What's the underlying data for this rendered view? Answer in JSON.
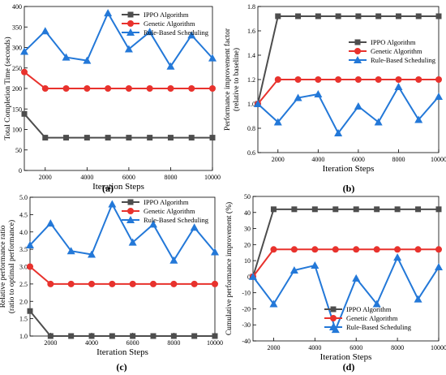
{
  "chart_data": [
    {
      "id": "a",
      "type": "line",
      "panel_label": "(a)",
      "xlabel": "Iteration Steps",
      "ylabel": "Total Completion Time (seconds)",
      "xlim": [
        1000,
        10000
      ],
      "ylim": [
        0,
        400
      ],
      "xticks": [
        2000,
        4000,
        6000,
        8000,
        10000
      ],
      "yticks": [
        0,
        50,
        100,
        150,
        200,
        250,
        300,
        350,
        400
      ],
      "ytick_labels": [
        "0",
        "50",
        "100",
        "150",
        "200",
        "250",
        "300",
        "350",
        "400"
      ],
      "legend_position": "top-right",
      "x": [
        1000,
        2000,
        3000,
        4000,
        5000,
        6000,
        7000,
        8000,
        9000,
        10000
      ],
      "series": [
        {
          "name": "IPPO Algorithm",
          "color": "#4d4d4d",
          "marker": "square",
          "values": [
            138,
            80,
            80,
            80,
            80,
            80,
            80,
            80,
            80,
            80
          ]
        },
        {
          "name": "Genetic Algorithm",
          "color": "#e8322d",
          "marker": "circle",
          "values": [
            240,
            200,
            200,
            200,
            200,
            200,
            200,
            200,
            200,
            200
          ]
        },
        {
          "name": "Rule-Based Scheduling",
          "color": "#2378d8",
          "marker": "triangle",
          "values": [
            290,
            340,
            276,
            268,
            384,
            296,
            338,
            254,
            330,
            274
          ]
        }
      ]
    },
    {
      "id": "b",
      "type": "line",
      "panel_label": "(b)",
      "xlabel": "Iteration Steps",
      "ylabel": "Performance improvement factor (relative to baseline)",
      "ylabel_lines": [
        "Performance improvement factor",
        "(relative to baseline)"
      ],
      "xlim": [
        1000,
        10000
      ],
      "ylim": [
        0.6,
        1.8
      ],
      "xticks": [
        2000,
        4000,
        6000,
        8000,
        10000
      ],
      "yticks": [
        0.6,
        0.8,
        1.0,
        1.2,
        1.4,
        1.6,
        1.8
      ],
      "ytick_labels": [
        "0.6",
        "0.8",
        "1.0",
        "1.2",
        "1.4",
        "1.6",
        "1.8"
      ],
      "legend_position": "middle-right",
      "x": [
        1000,
        2000,
        3000,
        4000,
        5000,
        6000,
        7000,
        8000,
        9000,
        10000
      ],
      "series": [
        {
          "name": "IPPO Algorithm",
          "color": "#4d4d4d",
          "marker": "square",
          "values": [
            1.0,
            1.72,
            1.72,
            1.72,
            1.72,
            1.72,
            1.72,
            1.72,
            1.72,
            1.72
          ]
        },
        {
          "name": "Genetic Algorithm",
          "color": "#e8322d",
          "marker": "circle",
          "values": [
            1.0,
            1.2,
            1.2,
            1.2,
            1.2,
            1.2,
            1.2,
            1.2,
            1.2,
            1.2
          ]
        },
        {
          "name": "Rule-Based Scheduling",
          "color": "#2378d8",
          "marker": "triangle",
          "values": [
            1.0,
            0.85,
            1.05,
            1.08,
            0.76,
            0.98,
            0.85,
            1.14,
            0.87,
            1.06
          ]
        }
      ]
    },
    {
      "id": "c",
      "type": "line",
      "panel_label": "(c)",
      "xlabel": "Iteration Steps",
      "ylabel": "Relative performance ratio (ratio to optimal performance)",
      "ylabel_lines": [
        "Relative performance ratio",
        "(ratio to optimal performance)"
      ],
      "xlim": [
        1000,
        10000
      ],
      "ylim": [
        1.0,
        5.0
      ],
      "xticks": [
        2000,
        4000,
        6000,
        8000,
        10000
      ],
      "yticks": [
        1.0,
        1.5,
        2.0,
        2.5,
        3.0,
        3.5,
        4.0,
        4.5,
        5.0
      ],
      "ytick_labels": [
        "1.0",
        "1.5",
        "2.0",
        "2.5",
        "3.0",
        "3.5",
        "4.0",
        "4.5",
        "5.0"
      ],
      "legend_position": "top-right",
      "x": [
        1000,
        2000,
        3000,
        4000,
        5000,
        6000,
        7000,
        8000,
        9000,
        10000
      ],
      "series": [
        {
          "name": "IPPO Algorithm",
          "color": "#4d4d4d",
          "marker": "square",
          "values": [
            1.72,
            1.0,
            1.0,
            1.0,
            1.0,
            1.0,
            1.0,
            1.0,
            1.0,
            1.0
          ]
        },
        {
          "name": "Genetic Algorithm",
          "color": "#e8322d",
          "marker": "circle",
          "values": [
            3.0,
            2.5,
            2.5,
            2.5,
            2.5,
            2.5,
            2.5,
            2.5,
            2.5,
            2.5
          ]
        },
        {
          "name": "Rule-Based Scheduling",
          "color": "#2378d8",
          "marker": "triangle",
          "values": [
            3.62,
            4.25,
            3.45,
            3.35,
            4.8,
            3.7,
            4.22,
            3.18,
            4.13,
            3.42
          ]
        }
      ]
    },
    {
      "id": "d",
      "type": "line",
      "panel_label": "(d)",
      "xlabel": "Iteration Steps",
      "ylabel": "Cumulative performance improvement (%)",
      "xlim": [
        1000,
        10000
      ],
      "ylim": [
        -40,
        50
      ],
      "xticks": [
        2000,
        4000,
        6000,
        8000,
        10000
      ],
      "yticks": [
        -40,
        -30,
        -20,
        -10,
        0,
        10,
        20,
        30,
        40,
        50
      ],
      "ytick_labels": [
        "-40",
        "-30",
        "-20",
        "-10",
        "0",
        "10",
        "20",
        "30",
        "40",
        "50"
      ],
      "legend_position": "bottom-right",
      "x": [
        1000,
        2000,
        3000,
        4000,
        5000,
        6000,
        7000,
        8000,
        9000,
        10000
      ],
      "series": [
        {
          "name": "IPPO Algorithm",
          "color": "#4d4d4d",
          "marker": "square",
          "values": [
            0,
            42,
            42,
            42,
            42,
            42,
            42,
            42,
            42,
            42
          ]
        },
        {
          "name": "Genetic Algorithm",
          "color": "#e8322d",
          "marker": "circle",
          "values": [
            0,
            17,
            17,
            17,
            17,
            17,
            17,
            17,
            17,
            17
          ]
        },
        {
          "name": "Rule-Based Scheduling",
          "color": "#2378d8",
          "marker": "triangle",
          "values": [
            0,
            -17,
            4,
            7,
            -33,
            -1,
            -17,
            12,
            -14,
            6
          ]
        }
      ]
    }
  ]
}
